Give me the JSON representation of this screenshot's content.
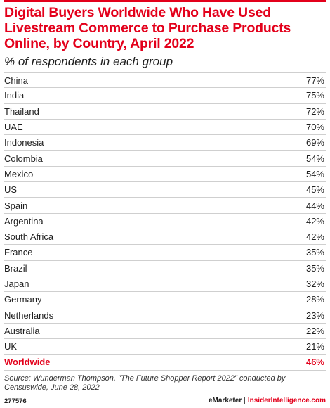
{
  "chart_data": {
    "type": "table",
    "title": "Digital Buyers Worldwide Who Have Used Livestream Commerce to Purchase Products Online, by Country, April 2022",
    "subtitle": "% of respondents in each group",
    "rows": [
      {
        "label": "China",
        "value": "77%"
      },
      {
        "label": "India",
        "value": "75%"
      },
      {
        "label": "Thailand",
        "value": "72%"
      },
      {
        "label": "UAE",
        "value": "70%"
      },
      {
        "label": "Indonesia",
        "value": "69%"
      },
      {
        "label": "Colombia",
        "value": "54%"
      },
      {
        "label": "Mexico",
        "value": "54%"
      },
      {
        "label": "US",
        "value": "45%"
      },
      {
        "label": "Spain",
        "value": "44%"
      },
      {
        "label": "Argentina",
        "value": "42%"
      },
      {
        "label": "South Africa",
        "value": "42%"
      },
      {
        "label": "France",
        "value": "35%"
      },
      {
        "label": "Brazil",
        "value": "35%"
      },
      {
        "label": "Japan",
        "value": "32%"
      },
      {
        "label": "Germany",
        "value": "28%"
      },
      {
        "label": "Netherlands",
        "value": "23%"
      },
      {
        "label": "Australia",
        "value": "22%"
      },
      {
        "label": "UK",
        "value": "21%"
      },
      {
        "label": "Worldwide",
        "value": "46%",
        "highlight": true
      }
    ],
    "accent_color": "#e3001b"
  },
  "source": "Source: Wunderman Thompson, \"The Future Shopper Report 2022\" conducted by Censuswide, June 28, 2022",
  "footer": {
    "chart_id": "277576",
    "brand_left": "eMarketer",
    "separator": "|",
    "brand_right": "InsiderIntelligence.com"
  }
}
